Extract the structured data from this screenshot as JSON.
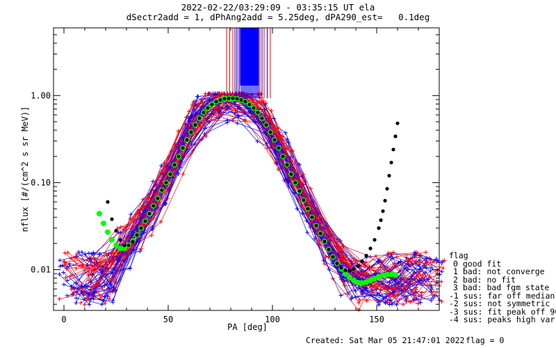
{
  "title": {
    "line1": "2022-02-22/03:29:09 - 03:35:15 UT ela",
    "line2": "dSectr2add = 1, dPhAng2add = 5.25deg, dPA290_est=   0.1deg"
  },
  "footer": {
    "created": "Created: Sat Mar 05 21:47:01 2022",
    "flag": "flag = 0"
  },
  "legend": {
    "title": "flag",
    "items": [
      "0 good fit",
      "1 bad: not converge",
      "2 bad: no fit",
      "3 bad: bad fgm state",
      "-1 sus: far off median",
      "-2 sus: not symmetric",
      "-3 sus: fit peak off 90",
      "-4 sus: peaks high var"
    ]
  },
  "colors": {
    "red": "#ff0000",
    "blue": "#0000ff",
    "green": "#00ff00",
    "black": "#000000"
  },
  "chart_data": {
    "type": "line",
    "xlabel": "PA [deg]",
    "ylabel": "nflux [#/(cm^2 s sr MeV)]",
    "xlim": [
      -5,
      180
    ],
    "ylim": [
      0.0034,
      6.0
    ],
    "yscale": "log",
    "x_ticks": [
      0,
      50,
      100,
      150
    ],
    "y_ticks": [
      {
        "value": 0.01,
        "label": "0.01"
      },
      {
        "value": 0.1,
        "label": "0.10"
      },
      {
        "value": 1.0,
        "label": "1.00"
      }
    ],
    "grid": false,
    "fit_curve": {
      "x": [
        17,
        19,
        21,
        23,
        25,
        27,
        29,
        31,
        33,
        35,
        37,
        39,
        41,
        43,
        45,
        47,
        49,
        51,
        53,
        55,
        57,
        59,
        61,
        63,
        65,
        67,
        69,
        71,
        73,
        75,
        77,
        79,
        81,
        83,
        85,
        87,
        89,
        91,
        93,
        95,
        97,
        99,
        101,
        103,
        105,
        107,
        109,
        111,
        113,
        115,
        117,
        119,
        121,
        123,
        125,
        127,
        129,
        131,
        133,
        135,
        137,
        139,
        141,
        143,
        145,
        147,
        149,
        151,
        153,
        155,
        157,
        159
      ],
      "y": [
        0.044,
        0.034,
        0.027,
        0.022,
        0.019,
        0.0175,
        0.0175,
        0.019,
        0.0215,
        0.025,
        0.03,
        0.036,
        0.044,
        0.054,
        0.066,
        0.082,
        0.1,
        0.125,
        0.16,
        0.2,
        0.25,
        0.31,
        0.38,
        0.46,
        0.55,
        0.64,
        0.72,
        0.79,
        0.85,
        0.89,
        0.92,
        0.93,
        0.93,
        0.92,
        0.89,
        0.85,
        0.79,
        0.72,
        0.64,
        0.55,
        0.46,
        0.38,
        0.31,
        0.25,
        0.2,
        0.16,
        0.125,
        0.1,
        0.08,
        0.063,
        0.05,
        0.04,
        0.032,
        0.026,
        0.021,
        0.017,
        0.014,
        0.0118,
        0.0102,
        0.009,
        0.0081,
        0.0075,
        0.0071,
        0.007,
        0.0072,
        0.0075,
        0.0079,
        0.0083,
        0.0086,
        0.0088,
        0.0088,
        0.0087
      ]
    },
    "black_curve": {
      "x": [
        21,
        23,
        25,
        27,
        29,
        31,
        33,
        35,
        37,
        39,
        41,
        43,
        45,
        47,
        49,
        51,
        53,
        55,
        57,
        59,
        61,
        63,
        65,
        67,
        69,
        71,
        73,
        75,
        77,
        79,
        81,
        83,
        85,
        87,
        89,
        91,
        93,
        95,
        97,
        99,
        101,
        103,
        105,
        107,
        109,
        111,
        113,
        115,
        117,
        119,
        121,
        123,
        125,
        127,
        129,
        131,
        133,
        135,
        137,
        139,
        141,
        143,
        145,
        147,
        149,
        151,
        152,
        153,
        154,
        155,
        156,
        157,
        158,
        159,
        160
      ],
      "y": [
        0.06,
        0.038,
        0.028,
        0.022,
        0.019,
        0.019,
        0.021,
        0.025,
        0.03,
        0.036,
        0.044,
        0.054,
        0.066,
        0.082,
        0.1,
        0.125,
        0.16,
        0.2,
        0.25,
        0.31,
        0.38,
        0.46,
        0.55,
        0.64,
        0.72,
        0.79,
        0.85,
        0.89,
        0.92,
        0.93,
        0.93,
        0.92,
        0.89,
        0.85,
        0.79,
        0.72,
        0.64,
        0.55,
        0.46,
        0.38,
        0.31,
        0.25,
        0.2,
        0.16,
        0.125,
        0.1,
        0.08,
        0.063,
        0.05,
        0.04,
        0.032,
        0.026,
        0.021,
        0.017,
        0.014,
        0.0118,
        0.0105,
        0.0098,
        0.0098,
        0.0102,
        0.011,
        0.0125,
        0.0145,
        0.0175,
        0.022,
        0.03,
        0.037,
        0.047,
        0.062,
        0.085,
        0.12,
        0.17,
        0.24,
        0.34,
        0.48
      ]
    },
    "spikes": {
      "x": [
        78,
        79.5,
        81,
        82,
        82.8,
        83.5,
        84.2,
        85,
        85.6,
        86.2,
        86.8,
        87.4,
        88,
        88.6,
        89.2,
        89.8,
        90.4,
        91,
        91.6,
        92.2,
        92.8,
        93.4,
        94,
        95,
        96,
        97.5,
        99
      ],
      "colors": [
        "red",
        "red",
        "red",
        "blue",
        "blue",
        "red",
        "blue",
        "blue",
        "blue",
        "blue",
        "blue",
        "blue",
        "blue",
        "blue",
        "blue",
        "blue",
        "blue",
        "blue",
        "blue",
        "blue",
        "blue",
        "blue",
        "red",
        "blue",
        "red",
        "blue",
        "red"
      ]
    }
  }
}
